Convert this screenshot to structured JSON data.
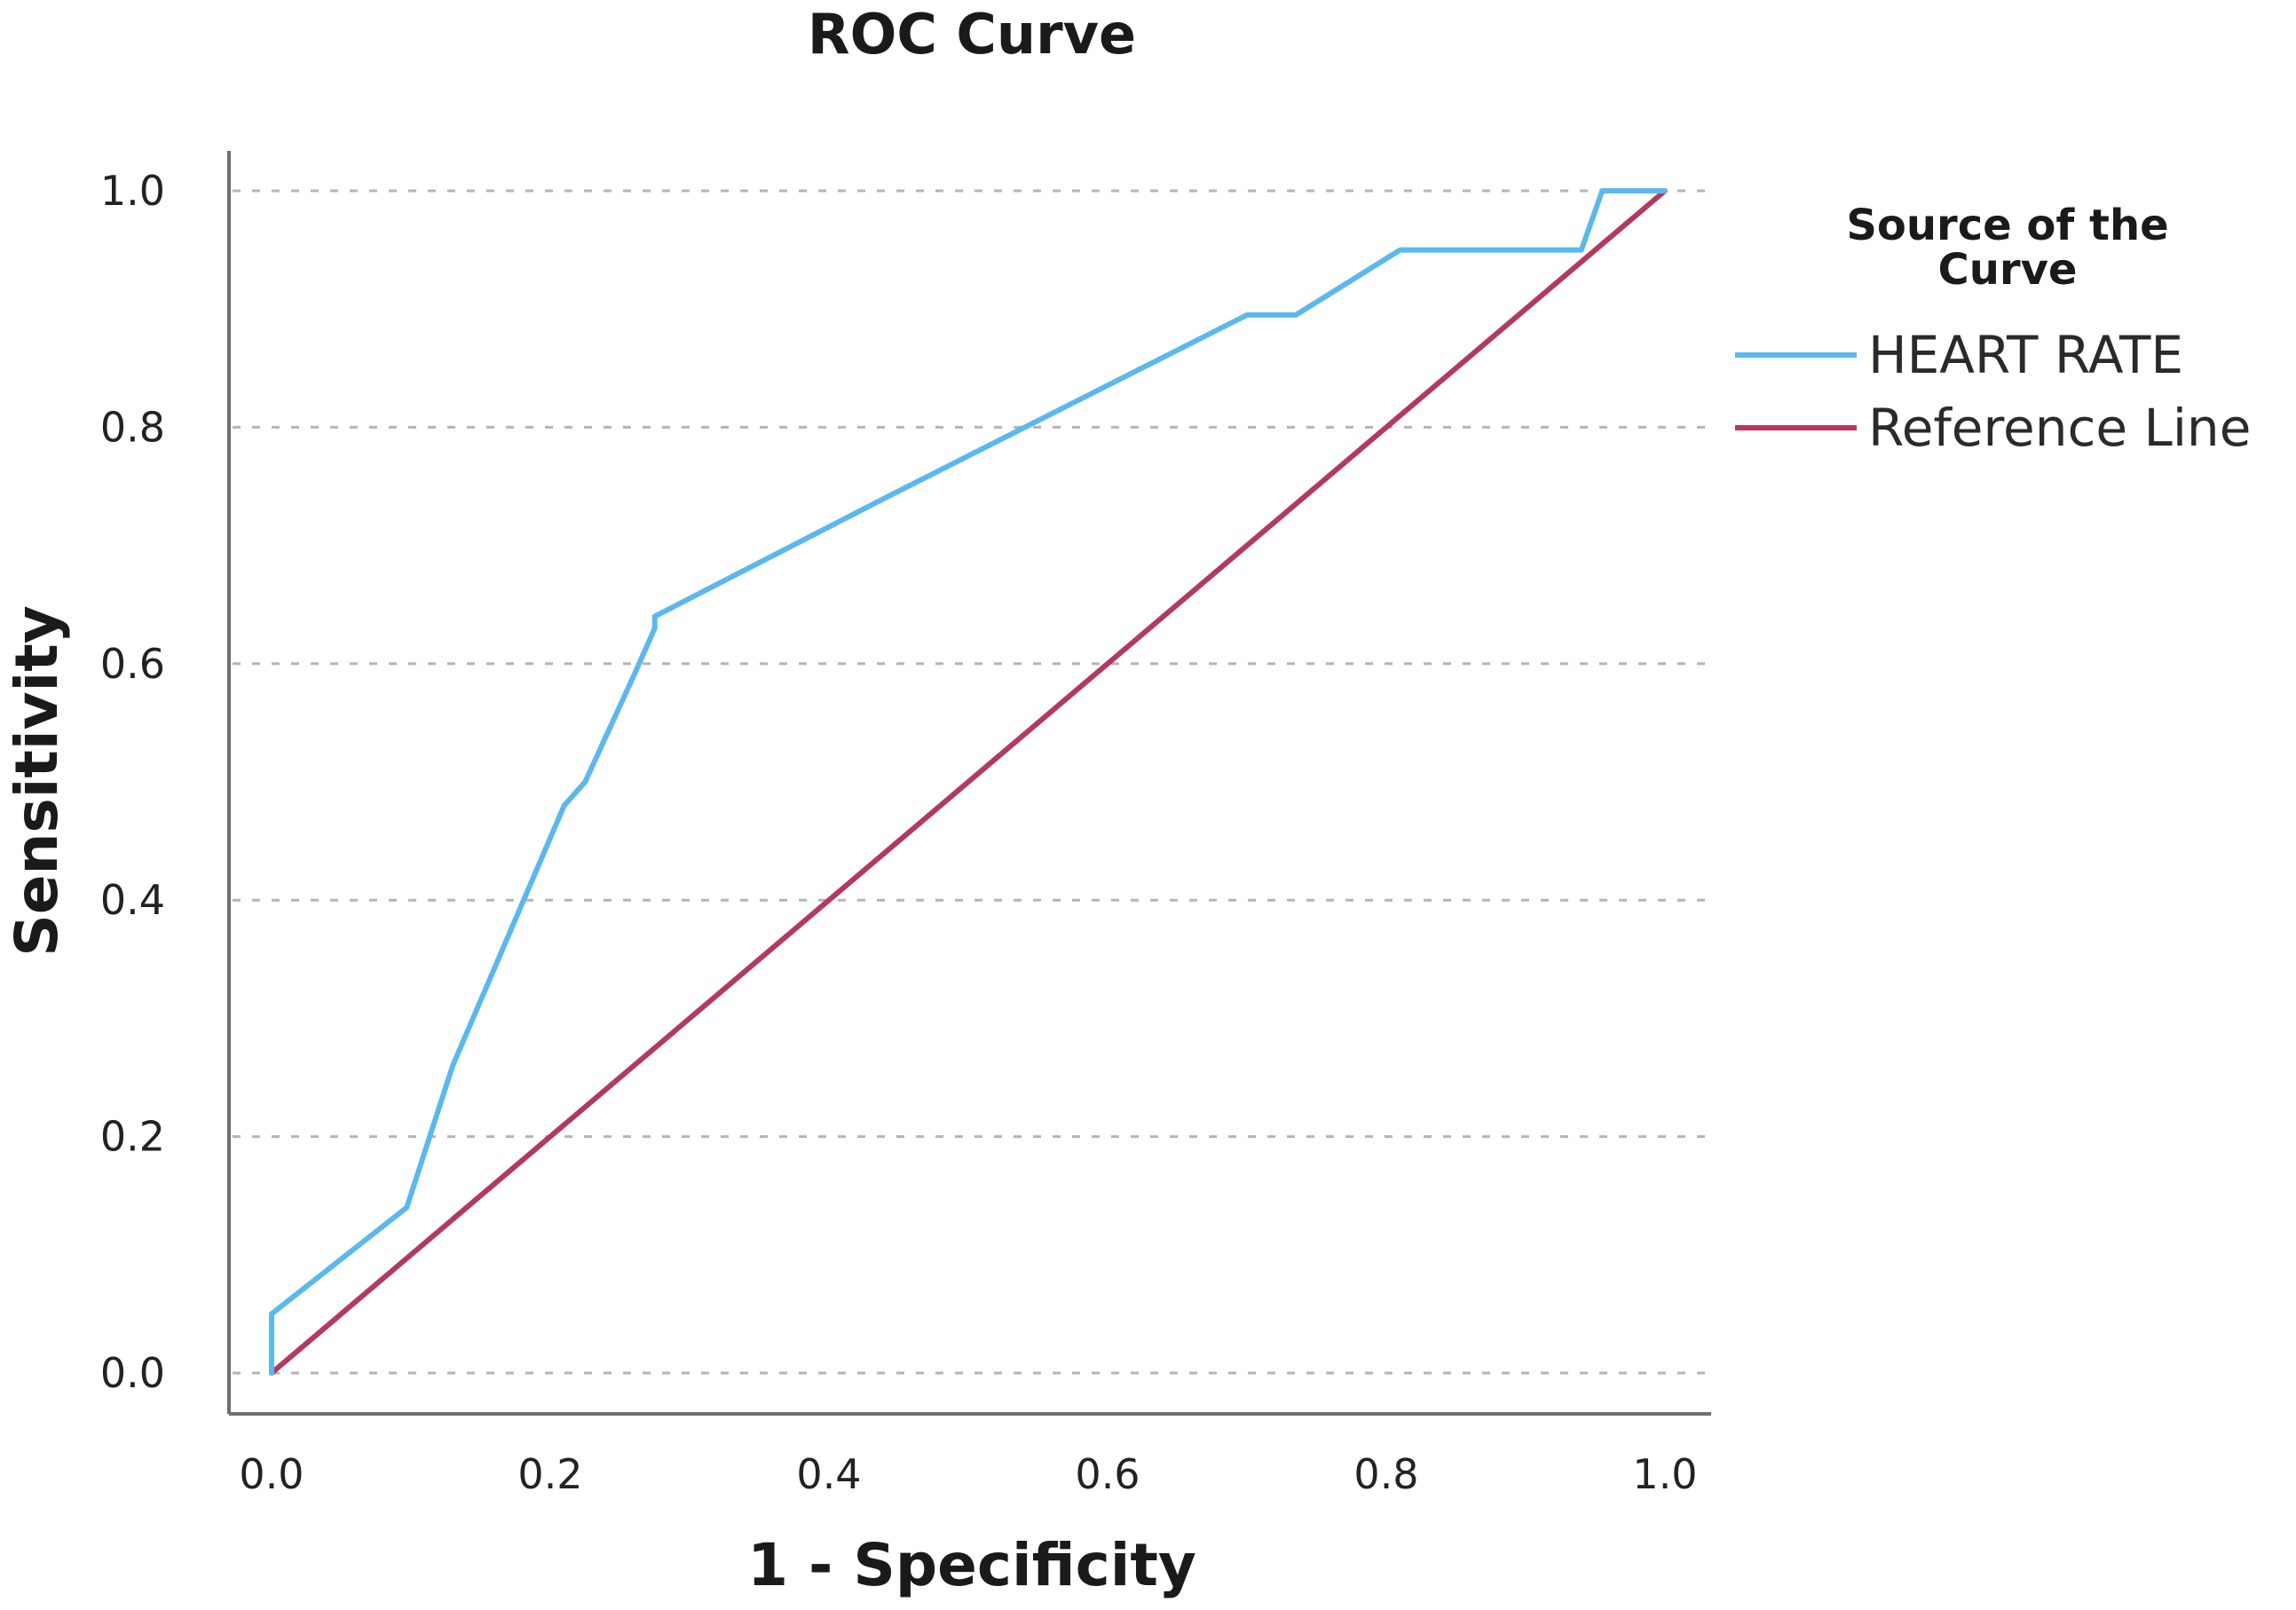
{
  "chart_data": {
    "type": "line",
    "title": "ROC Curve",
    "xlabel": "1 - Specificity",
    "ylabel": "Sensitivity",
    "xlim": [
      0.0,
      1.0
    ],
    "ylim": [
      0.0,
      1.0
    ],
    "x_ticks": [
      "0.0",
      "0.2",
      "0.4",
      "0.6",
      "0.8",
      "1.0"
    ],
    "y_ticks": [
      "0.0",
      "0.2",
      "0.4",
      "0.6",
      "0.8",
      "1.0"
    ],
    "grid": "horizontal-dashed",
    "legend": {
      "title": "Source of the Curve",
      "title_lines": [
        "Source of the",
        "Curve"
      ],
      "placement": "right"
    },
    "series": [
      {
        "name": "HEART RATE",
        "color": "#5bb8ee",
        "x": [
          0.0,
          0.0,
          0.097,
          0.13,
          0.21,
          0.225,
          0.26,
          0.275,
          0.275,
          0.44,
          0.7,
          0.735,
          0.81,
          0.94,
          0.955,
          0.955,
          1.0
        ],
        "y": [
          0.0,
          0.05,
          0.14,
          0.26,
          0.48,
          0.5,
          0.59,
          0.63,
          0.64,
          0.74,
          0.895,
          0.895,
          0.95,
          0.95,
          1.0,
          1.0,
          1.0
        ]
      },
      {
        "name": "Reference Line",
        "color": "#b23a5c",
        "x": [
          0.0,
          1.0
        ],
        "y": [
          0.0,
          1.0
        ]
      }
    ]
  }
}
